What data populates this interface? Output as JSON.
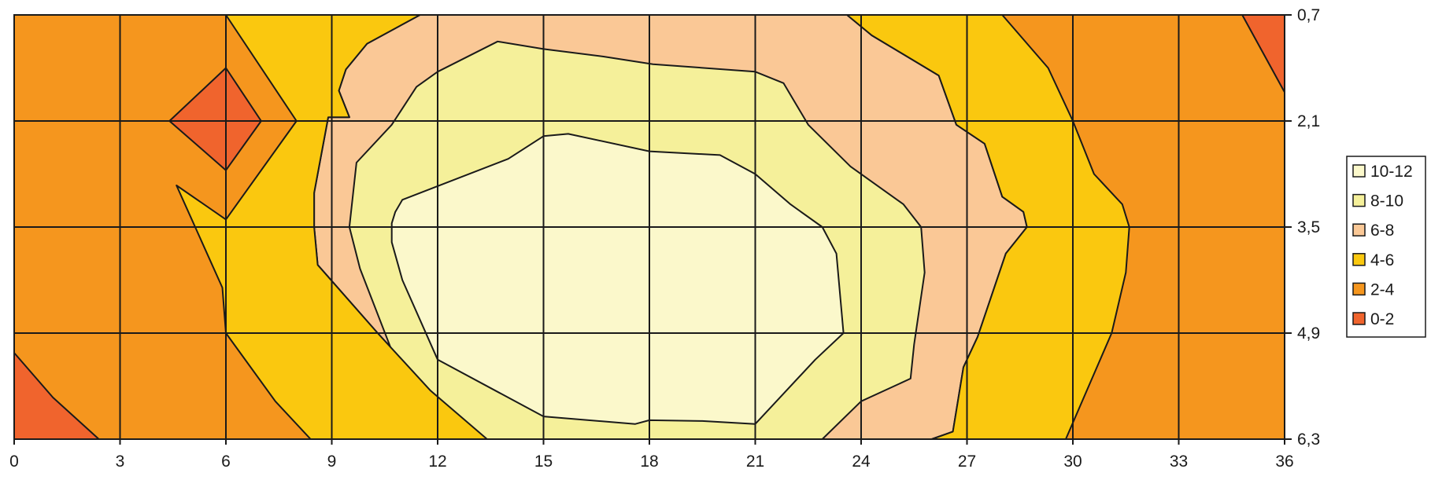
{
  "chart_data": {
    "type": "contour",
    "title": "",
    "xlabel": "",
    "ylabel": "",
    "x_ticks": [
      "0",
      "3",
      "6",
      "9",
      "12",
      "15",
      "18",
      "21",
      "24",
      "27",
      "30",
      "33",
      "36"
    ],
    "y_ticks": [
      "0,7",
      "2,1",
      "3,5",
      "4,9",
      "6,3"
    ],
    "x_range": [
      0,
      36
    ],
    "y_range": [
      0.7,
      6.3
    ],
    "y_axis_side": "right",
    "grid": true,
    "legend_position": "right",
    "legend": [
      {
        "label": "10-12",
        "color": "#FBF8CB"
      },
      {
        "label": "8-10",
        "color": "#F5F09A"
      },
      {
        "label": "6-8",
        "color": "#FAC896"
      },
      {
        "label": "4-6",
        "color": "#FAC80F"
      },
      {
        "label": "2-4",
        "color": "#F5961E"
      },
      {
        "label": "0-2",
        "color": "#F0642D"
      }
    ],
    "contours": [
      {
        "band": "6-8",
        "color": "#FAC896",
        "points": [
          [
            11.5,
            0.7
          ],
          [
            23.6,
            0.7
          ],
          [
            24.3,
            0.97
          ],
          [
            26.2,
            1.5
          ],
          [
            26.7,
            2.15
          ],
          [
            27.5,
            2.4
          ],
          [
            28.0,
            3.1
          ],
          [
            28.6,
            3.3
          ],
          [
            28.7,
            3.5
          ],
          [
            28.1,
            3.85
          ],
          [
            27.3,
            4.95
          ],
          [
            26.9,
            5.35
          ],
          [
            26.6,
            6.2
          ],
          [
            26.0,
            6.3
          ],
          [
            13.4,
            6.3
          ],
          [
            11.8,
            5.66
          ],
          [
            10.3,
            4.9
          ],
          [
            8.6,
            4.0
          ],
          [
            8.5,
            3.5
          ],
          [
            8.5,
            3.05
          ],
          [
            8.9,
            2.05
          ],
          [
            9.5,
            2.05
          ],
          [
            9.2,
            1.7
          ],
          [
            9.4,
            1.42
          ],
          [
            10.0,
            1.08
          ],
          [
            11.5,
            0.7
          ]
        ]
      },
      {
        "band": "8-10",
        "color": "#F5F09A",
        "points": [
          [
            15.0,
            1.15
          ],
          [
            16.7,
            1.25
          ],
          [
            18.1,
            1.35
          ],
          [
            21.0,
            1.45
          ],
          [
            21.8,
            1.6
          ],
          [
            22.5,
            2.15
          ],
          [
            23.7,
            2.7
          ],
          [
            25.2,
            3.2
          ],
          [
            25.7,
            3.5
          ],
          [
            25.8,
            4.1
          ],
          [
            25.5,
            5.05
          ],
          [
            25.4,
            5.5
          ],
          [
            24.0,
            5.8
          ],
          [
            22.9,
            6.3
          ],
          [
            12.0,
            6.3
          ],
          [
            11.4,
            5.7
          ],
          [
            10.8,
            5.25
          ],
          [
            9.8,
            4.05
          ],
          [
            9.5,
            3.5
          ],
          [
            9.7,
            2.65
          ],
          [
            10.7,
            2.15
          ],
          [
            11.4,
            1.65
          ],
          [
            12.0,
            1.45
          ],
          [
            13.7,
            1.05
          ],
          [
            15.0,
            1.15
          ]
        ]
      },
      {
        "band": "10-12",
        "color": "#FBF8CB",
        "points": [
          [
            15.0,
            2.3
          ],
          [
            15.7,
            2.27
          ],
          [
            18.0,
            2.5
          ],
          [
            20.0,
            2.55
          ],
          [
            21.0,
            2.8
          ],
          [
            22.0,
            3.2
          ],
          [
            22.9,
            3.5
          ],
          [
            23.3,
            3.85
          ],
          [
            23.5,
            4.9
          ],
          [
            22.7,
            5.25
          ],
          [
            21.0,
            6.1
          ],
          [
            19.5,
            6.06
          ],
          [
            18.0,
            6.05
          ],
          [
            17.6,
            6.1
          ],
          [
            15.0,
            6.0
          ],
          [
            12.0,
            5.25
          ],
          [
            11.0,
            4.2
          ],
          [
            10.7,
            3.7
          ],
          [
            10.7,
            3.45
          ],
          [
            10.8,
            3.3
          ],
          [
            11.0,
            3.14
          ],
          [
            12.0,
            2.96
          ],
          [
            14.0,
            2.6
          ],
          [
            15.0,
            2.3
          ]
        ]
      },
      {
        "band": "4-6",
        "color": "#FAC80F",
        "points": [
          [
            6.0,
            0.7
          ],
          [
            11.5,
            0.7
          ],
          [
            10.0,
            1.08
          ],
          [
            9.4,
            1.42
          ],
          [
            9.2,
            1.7
          ],
          [
            9.5,
            2.05
          ],
          [
            8.9,
            2.05
          ],
          [
            8.5,
            3.05
          ],
          [
            8.5,
            3.5
          ],
          [
            8.6,
            4.0
          ],
          [
            10.3,
            4.9
          ],
          [
            11.8,
            5.66
          ],
          [
            13.4,
            6.3
          ],
          [
            8.4,
            6.3
          ],
          [
            7.4,
            5.8
          ],
          [
            6.0,
            4.9
          ],
          [
            5.9,
            4.3
          ],
          [
            4.6,
            2.95
          ],
          [
            6.0,
            3.4
          ],
          [
            8.0,
            2.1
          ],
          [
            6.0,
            0.7
          ]
        ]
      },
      {
        "band": "4-6",
        "color": "#FAC80F",
        "points": [
          [
            23.6,
            0.7
          ],
          [
            28.0,
            0.7
          ],
          [
            29.3,
            1.4
          ],
          [
            30.0,
            2.1
          ],
          [
            30.6,
            2.8
          ],
          [
            31.4,
            3.2
          ],
          [
            31.6,
            3.5
          ],
          [
            31.5,
            4.1
          ],
          [
            31.1,
            4.9
          ],
          [
            29.8,
            6.3
          ],
          [
            26.0,
            6.3
          ],
          [
            26.6,
            6.2
          ],
          [
            26.9,
            5.35
          ],
          [
            27.3,
            4.95
          ],
          [
            28.1,
            3.85
          ],
          [
            28.7,
            3.5
          ],
          [
            28.6,
            3.3
          ],
          [
            28.0,
            3.1
          ],
          [
            27.5,
            2.4
          ],
          [
            26.7,
            2.15
          ],
          [
            26.2,
            1.5
          ],
          [
            24.3,
            0.97
          ],
          [
            23.6,
            0.7
          ]
        ]
      },
      {
        "band": "0-2",
        "color": "#F0642D",
        "points": [
          [
            6.0,
            1.4
          ],
          [
            7.0,
            2.1
          ],
          [
            6.0,
            2.75
          ],
          [
            4.4,
            2.1
          ]
        ]
      },
      {
        "band": "0-2",
        "color": "#F0642D",
        "points": [
          [
            0,
            5.16
          ],
          [
            1.1,
            5.75
          ],
          [
            2.4,
            6.3
          ],
          [
            0,
            6.3
          ]
        ]
      },
      {
        "band": "0-2",
        "color": "#F0642D",
        "points": [
          [
            34.8,
            0.7
          ],
          [
            36,
            0.7
          ],
          [
            36,
            1.72
          ]
        ]
      }
    ]
  }
}
